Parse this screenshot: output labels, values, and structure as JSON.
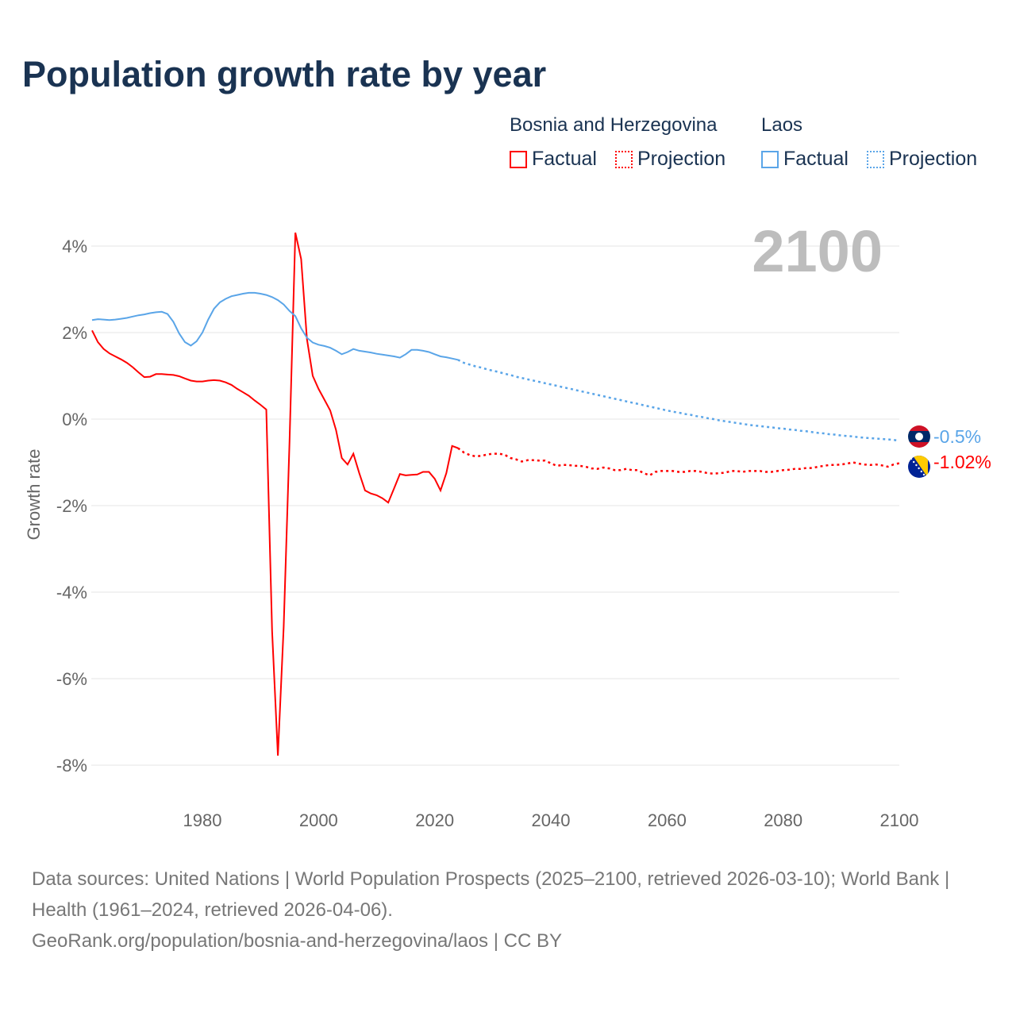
{
  "title": "Population growth rate by year",
  "legend": {
    "groups": [
      {
        "name": "Bosnia and Herzegovina",
        "factual": "Factual",
        "projection": "Projection",
        "color": "#ff0000"
      },
      {
        "name": "Laos",
        "factual": "Factual",
        "projection": "Projection",
        "color": "#5aa5e8"
      }
    ]
  },
  "footer": {
    "sources": "Data sources: United Nations | World Population Prospects (2025–2100, retrieved 2026-03-10); World Bank | Health (1961–2024, retrieved 2026-04-06).",
    "link": "GeoRank.org/population/bosnia-and-herzegovina/laos | CC BY"
  },
  "chart_data": {
    "type": "line",
    "title": "Population growth rate by year",
    "ylabel": "Growth rate",
    "xlabel": "",
    "year_label": "2100",
    "xlim": [
      1961,
      2100
    ],
    "ylim": [
      -8,
      4
    ],
    "xticks": [
      1980,
      2000,
      2020,
      2040,
      2060,
      2080,
      2100
    ],
    "yticks": [
      4,
      2,
      0,
      -2,
      -4,
      -6,
      -8
    ],
    "ytick_labels": [
      "4%",
      "2%",
      "0%",
      "-2%",
      "-4%",
      "-6%",
      "-8%"
    ],
    "grid": true,
    "legend_position": "top-right",
    "series": [
      {
        "name": "Bosnia and Herzegovina",
        "color": "#ff0000",
        "end_label": "-1.02%",
        "factual": {
          "start_year": 1961,
          "values": [
            2.05,
            1.78,
            1.62,
            1.52,
            1.45,
            1.38,
            1.3,
            1.2,
            1.08,
            0.97,
            0.98,
            1.04,
            1.04,
            1.03,
            1.02,
            0.99,
            0.94,
            0.89,
            0.87,
            0.87,
            0.89,
            0.9,
            0.89,
            0.85,
            0.79,
            0.7,
            0.62,
            0.54,
            0.43,
            0.33,
            0.22,
            -4.9,
            -7.78,
            -4.8,
            -0.5,
            4.31,
            3.7,
            1.85,
            1.0,
            0.7,
            0.45,
            0.2,
            -0.25,
            -0.9,
            -1.05,
            -0.8,
            -1.25,
            -1.65,
            -1.72,
            -1.76,
            -1.83,
            -1.93,
            -1.6,
            -1.27,
            -1.3,
            -1.29,
            -1.28,
            -1.22,
            -1.22,
            -1.38,
            -1.65,
            -1.25,
            -0.62,
            -0.67
          ]
        },
        "projection": {
          "start_year": 2024,
          "values": [
            -0.67,
            -0.77,
            -0.83,
            -0.86,
            -0.85,
            -0.82,
            -0.8,
            -0.8,
            -0.82,
            -0.9,
            -0.93,
            -0.98,
            -0.95,
            -0.95,
            -0.96,
            -0.96,
            -1.02,
            -1.08,
            -1.06,
            -1.06,
            -1.08,
            -1.08,
            -1.1,
            -1.14,
            -1.15,
            -1.12,
            -1.14,
            -1.18,
            -1.18,
            -1.15,
            -1.18,
            -1.18,
            -1.25,
            -1.3,
            -1.22,
            -1.2,
            -1.2,
            -1.2,
            -1.22,
            -1.22,
            -1.2,
            -1.2,
            -1.22,
            -1.25,
            -1.26,
            -1.25,
            -1.24,
            -1.2,
            -1.2,
            -1.22,
            -1.2,
            -1.2,
            -1.2,
            -1.22,
            -1.22,
            -1.2,
            -1.18,
            -1.17,
            -1.15,
            -1.15,
            -1.13,
            -1.13,
            -1.1,
            -1.08,
            -1.06,
            -1.06,
            -1.05,
            -1.03,
            -1.0,
            -1.03,
            -1.05,
            -1.06,
            -1.05,
            -1.07,
            -1.1,
            -1.05,
            -1.02
          ]
        }
      },
      {
        "name": "Laos",
        "color": "#5aa5e8",
        "end_label": "-0.5%",
        "factual": {
          "start_year": 1961,
          "values": [
            2.29,
            2.31,
            2.3,
            2.29,
            2.3,
            2.32,
            2.34,
            2.37,
            2.4,
            2.42,
            2.45,
            2.47,
            2.48,
            2.43,
            2.25,
            1.98,
            1.78,
            1.7,
            1.8,
            2.0,
            2.3,
            2.55,
            2.7,
            2.78,
            2.84,
            2.87,
            2.9,
            2.92,
            2.92,
            2.9,
            2.87,
            2.82,
            2.75,
            2.65,
            2.5,
            2.38,
            2.1,
            1.88,
            1.77,
            1.72,
            1.69,
            1.65,
            1.58,
            1.5,
            1.55,
            1.62,
            1.58,
            1.56,
            1.54,
            1.51,
            1.49,
            1.47,
            1.45,
            1.42,
            1.5,
            1.6,
            1.6,
            1.58,
            1.55,
            1.5,
            1.45,
            1.43,
            1.4,
            1.37
          ]
        },
        "projection": {
          "start_year": 2024,
          "step": 1,
          "values": [
            1.37,
            1.3,
            1.26,
            1.22,
            1.19,
            1.15,
            1.12,
            1.09,
            1.05,
            1.02,
            0.98,
            0.95,
            0.92,
            0.89,
            0.86,
            0.83,
            0.8,
            0.77,
            0.74,
            0.71,
            0.68,
            0.65,
            0.62,
            0.59,
            0.56,
            0.53,
            0.5,
            0.47,
            0.44,
            0.41,
            0.38,
            0.35,
            0.32,
            0.29,
            0.26,
            0.23,
            0.2,
            0.17,
            0.15,
            0.12,
            0.1,
            0.07,
            0.05,
            0.02,
            0.0,
            -0.03,
            -0.05,
            -0.07,
            -0.09,
            -0.11,
            -0.13,
            -0.15,
            -0.16,
            -0.18,
            -0.19,
            -0.21,
            -0.22,
            -0.24,
            -0.25,
            -0.27,
            -0.28,
            -0.3,
            -0.32,
            -0.33,
            -0.35,
            -0.36,
            -0.38,
            -0.39,
            -0.4,
            -0.42,
            -0.43,
            -0.44,
            -0.45,
            -0.46,
            -0.47,
            -0.48,
            -0.5
          ]
        }
      }
    ]
  }
}
